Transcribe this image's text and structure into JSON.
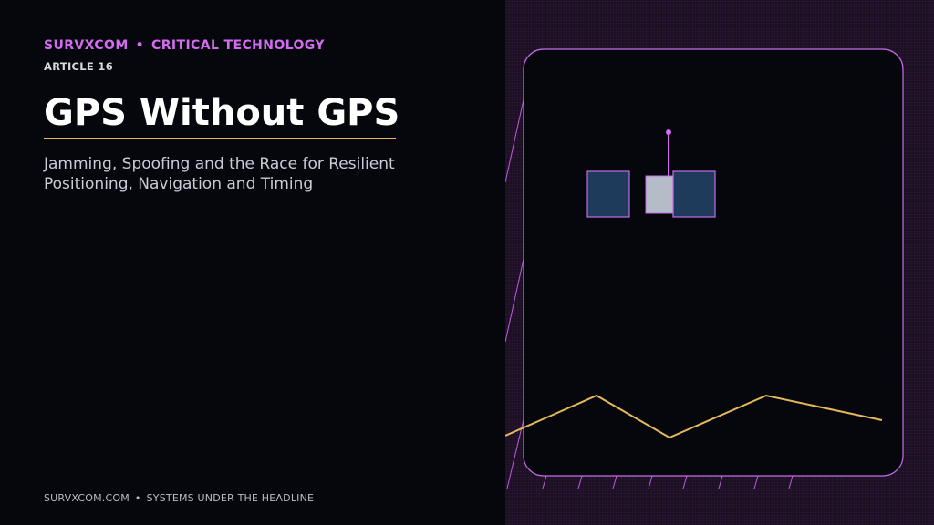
{
  "header": {
    "brand": "SURVXCOM",
    "separator": "•",
    "category": "CRITICAL TECHNOLOGY",
    "article_label": "ARTICLE 16"
  },
  "article": {
    "title": "GPS Without GPS",
    "subtitle_lines": [
      "Jamming, Spoofing and the Race for Resilient",
      "Positioning, Navigation and Timing"
    ]
  },
  "footer": {
    "site": "SURVXCOM.COM",
    "separator": "•",
    "tagline": "SYSTEMS UNDER THE HEADLINE"
  },
  "illustration": {
    "icons": [
      "satellite-icon",
      "signal-trace-line"
    ]
  },
  "colors": {
    "background": "#05070d",
    "accent": "#d36cf0",
    "gold": "#e5b85a",
    "panel": "#1b0f22",
    "solar_panel": "#1f3b5c",
    "satellite_body": "#b4bcc8"
  }
}
